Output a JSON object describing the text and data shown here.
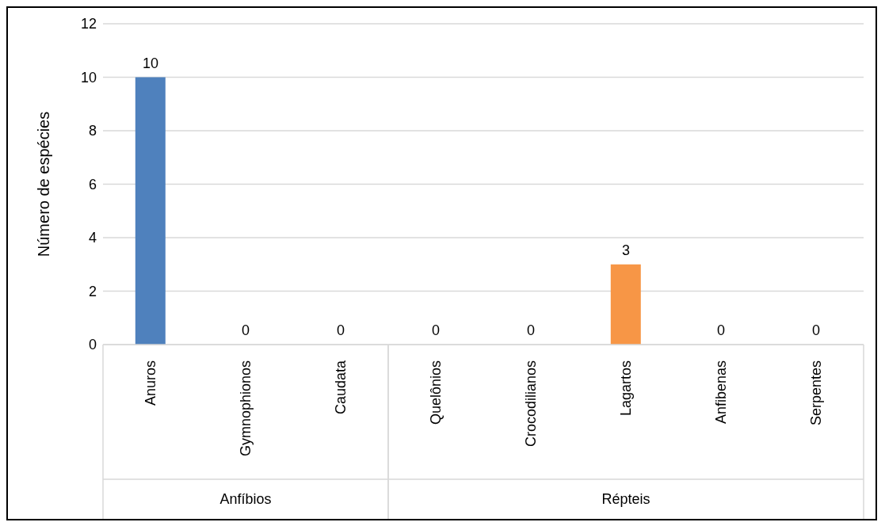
{
  "chart_data": {
    "type": "bar",
    "ylabel": "Número de espécies",
    "categories": [
      "Anuros",
      "Gymnophionos",
      "Caudata",
      "Quelônios",
      "Crocodilianos",
      "Lagartos",
      "Anfibenas",
      "Serpentes"
    ],
    "values": [
      10,
      0,
      0,
      0,
      0,
      3,
      0,
      0
    ],
    "colors": [
      "#4f81bd",
      "#4f81bd",
      "#4f81bd",
      "#f79646",
      "#f79646",
      "#f79646",
      "#f79646",
      "#f79646"
    ],
    "ylim": [
      0,
      12
    ],
    "yticks": [
      0,
      2,
      4,
      6,
      8,
      10,
      12
    ],
    "grid": "y",
    "data_labels": true,
    "annotations": [
      "Anfíbios",
      "Répteis"
    ]
  }
}
